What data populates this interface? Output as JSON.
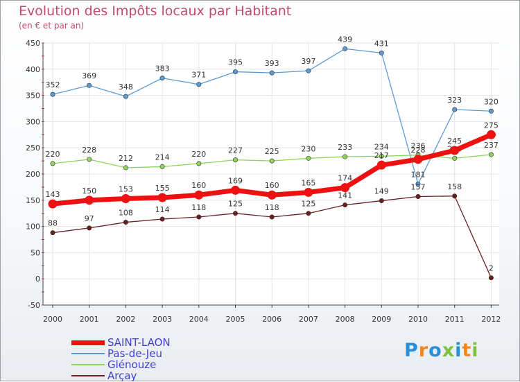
{
  "title": "Evolution des Impôts locaux par Habitant",
  "subtitle": "(en € et par an)",
  "logo": {
    "text": "Proxiti",
    "colors": [
      "#2b8ed8",
      "#f08a1c",
      "#7cc242"
    ]
  },
  "chart_data": {
    "type": "line",
    "title": "Evolution des Impôts locaux par Habitant",
    "subtitle": "(en € et par an)",
    "xlabel": "",
    "ylabel": "",
    "x": [
      2000,
      2001,
      2002,
      2003,
      2004,
      2005,
      2006,
      2007,
      2008,
      2009,
      2010,
      2011,
      2012
    ],
    "ylim": [
      -50,
      450
    ],
    "yticks": [
      -50,
      0,
      50,
      100,
      150,
      200,
      250,
      300,
      350,
      400,
      450
    ],
    "grid": true,
    "legend_position": "bottom-left",
    "series": [
      {
        "name": "Pas-de-Jeu",
        "color": "#5b9bd5",
        "values": [
          352,
          369,
          348,
          383,
          371,
          395,
          393,
          397,
          439,
          431,
          181,
          323,
          320
        ]
      },
      {
        "name": "Glénouze",
        "color": "#8fd45a",
        "values": [
          220,
          228,
          212,
          214,
          220,
          227,
          225,
          230,
          233,
          234,
          236,
          230,
          237
        ]
      },
      {
        "name": "Arçay",
        "color": "#6b1e1e",
        "values": [
          88,
          97,
          108,
          114,
          118,
          125,
          118,
          125,
          141,
          149,
          157,
          158,
          2
        ]
      },
      {
        "name": "SAINT-LAON",
        "color": "#ee1111",
        "values": [
          143,
          150,
          153,
          155,
          160,
          169,
          160,
          165,
          174,
          217,
          228,
          245,
          275
        ]
      }
    ]
  }
}
